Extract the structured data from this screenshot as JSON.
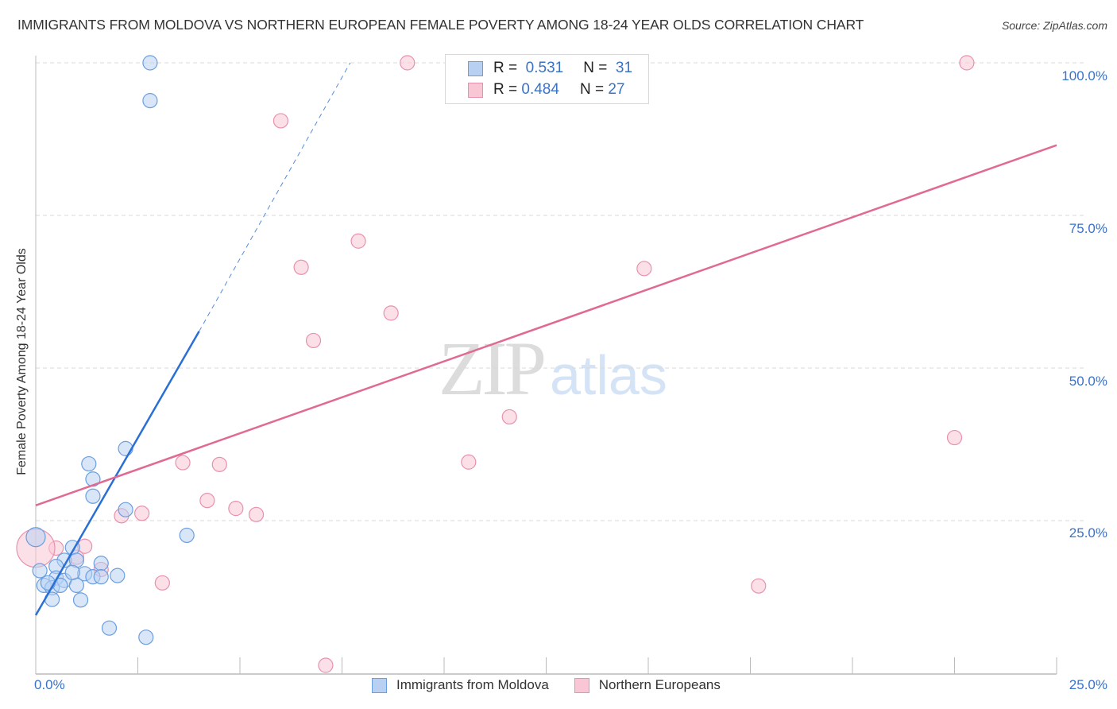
{
  "header": {
    "title": "IMMIGRANTS FROM MOLDOVA VS NORTHERN EUROPEAN FEMALE POVERTY AMONG 18-24 YEAR OLDS CORRELATION CHART",
    "source": "Source: ZipAtlas.com"
  },
  "watermark": {
    "zip": "ZIP",
    "atlas": "atlas"
  },
  "axes": {
    "y_label": "Female Poverty Among 18-24 Year Olds",
    "y_ticks": [
      "100.0%",
      "75.0%",
      "50.0%",
      "25.0%"
    ],
    "x_ticks": [
      "0.0%",
      "25.0%"
    ]
  },
  "legend": {
    "series": [
      {
        "r_label": "R =",
        "r_value": "0.531",
        "n_label": "N =",
        "n_value": "31"
      },
      {
        "r_label": "R =",
        "r_value": "0.484",
        "n_label": "N =",
        "n_value": "27"
      }
    ]
  },
  "bottom_legend": {
    "items": [
      {
        "label": "Immigrants from Moldova"
      },
      {
        "label": "Northern Europeans"
      }
    ]
  },
  "colors": {
    "blue_fill": "#b8d1f3",
    "blue_stroke": "#6b9ee0",
    "blue_line": "#2a6fd4",
    "pink_fill": "#f9c6d5",
    "pink_stroke": "#e891ad",
    "pink_line": "#e06a93",
    "tick_label": "#3a72c8",
    "grid": "#d9d9d9"
  },
  "chart_data": {
    "type": "scatter",
    "title": "IMMIGRANTS FROM MOLDOVA VS NORTHERN EUROPEAN FEMALE POVERTY AMONG 18-24 YEAR OLDS CORRELATION CHART",
    "xlabel": "",
    "ylabel": "Female Poverty Among 18-24 Year Olds",
    "xlim": [
      0,
      25
    ],
    "ylim": [
      0,
      100
    ],
    "x_tick_labels": [
      "0.0%",
      "25.0%"
    ],
    "y_tick_labels": [
      "25.0%",
      "50.0%",
      "75.0%",
      "100.0%"
    ],
    "grid": true,
    "legend_position": "top-center and bottom",
    "series": [
      {
        "name": "Immigrants from Moldova",
        "R": 0.531,
        "N": 31,
        "color": "#b8d1f3",
        "trend_line": {
          "x": [
            0,
            4.0,
            7.7
          ],
          "y": [
            9.5,
            56.0,
            100.0
          ],
          "solid_until_x": 4.0
        },
        "points": [
          {
            "x": 2.8,
            "y": 100.0
          },
          {
            "x": 2.8,
            "y": 93.8
          },
          {
            "x": 2.2,
            "y": 36.8
          },
          {
            "x": 1.3,
            "y": 34.3
          },
          {
            "x": 1.4,
            "y": 31.8
          },
          {
            "x": 1.4,
            "y": 29.0
          },
          {
            "x": 2.2,
            "y": 26.8
          },
          {
            "x": 3.7,
            "y": 22.6
          },
          {
            "x": 0.0,
            "y": 22.3
          },
          {
            "x": 0.9,
            "y": 20.6
          },
          {
            "x": 0.7,
            "y": 18.5
          },
          {
            "x": 1.0,
            "y": 18.5
          },
          {
            "x": 1.6,
            "y": 18.0
          },
          {
            "x": 0.5,
            "y": 17.5
          },
          {
            "x": 0.1,
            "y": 16.8
          },
          {
            "x": 1.2,
            "y": 16.3
          },
          {
            "x": 1.4,
            "y": 15.8
          },
          {
            "x": 2.0,
            "y": 16.0
          },
          {
            "x": 0.5,
            "y": 15.6
          },
          {
            "x": 0.7,
            "y": 15.2
          },
          {
            "x": 1.6,
            "y": 15.8
          },
          {
            "x": 0.2,
            "y": 14.4
          },
          {
            "x": 0.4,
            "y": 14.0
          },
          {
            "x": 0.6,
            "y": 14.4
          },
          {
            "x": 1.0,
            "y": 14.4
          },
          {
            "x": 0.4,
            "y": 12.1
          },
          {
            "x": 1.1,
            "y": 12.0
          },
          {
            "x": 1.8,
            "y": 7.4
          },
          {
            "x": 2.7,
            "y": 5.9
          },
          {
            "x": 0.3,
            "y": 14.8
          },
          {
            "x": 0.9,
            "y": 16.5
          }
        ]
      },
      {
        "name": "Northern Europeans",
        "R": 0.484,
        "N": 27,
        "color": "#f9c6d5",
        "trend_line": {
          "x": [
            0,
            25
          ],
          "y": [
            27.5,
            86.5
          ]
        },
        "points": [
          {
            "x": 9.1,
            "y": 100.0
          },
          {
            "x": 12.3,
            "y": 100.0
          },
          {
            "x": 22.8,
            "y": 100.0
          },
          {
            "x": 6.0,
            "y": 90.5
          },
          {
            "x": 7.9,
            "y": 70.8
          },
          {
            "x": 6.5,
            "y": 66.5
          },
          {
            "x": 14.9,
            "y": 66.3
          },
          {
            "x": 8.7,
            "y": 59.0
          },
          {
            "x": 6.8,
            "y": 54.5
          },
          {
            "x": 11.6,
            "y": 42.0
          },
          {
            "x": 22.5,
            "y": 38.6
          },
          {
            "x": 3.6,
            "y": 34.5
          },
          {
            "x": 4.5,
            "y": 34.2
          },
          {
            "x": 10.6,
            "y": 34.6
          },
          {
            "x": 4.2,
            "y": 28.3
          },
          {
            "x": 4.9,
            "y": 27.0
          },
          {
            "x": 5.4,
            "y": 26.0
          },
          {
            "x": 2.6,
            "y": 26.2
          },
          {
            "x": 2.1,
            "y": 25.8
          },
          {
            "x": 0.5,
            "y": 20.5
          },
          {
            "x": 1.2,
            "y": 20.8
          },
          {
            "x": 0.0,
            "y": 20.5
          },
          {
            "x": 1.6,
            "y": 17.0
          },
          {
            "x": 3.1,
            "y": 14.8
          },
          {
            "x": 17.7,
            "y": 14.3
          },
          {
            "x": 7.1,
            "y": 1.3
          },
          {
            "x": 1.0,
            "y": 19.0
          }
        ]
      }
    ]
  }
}
